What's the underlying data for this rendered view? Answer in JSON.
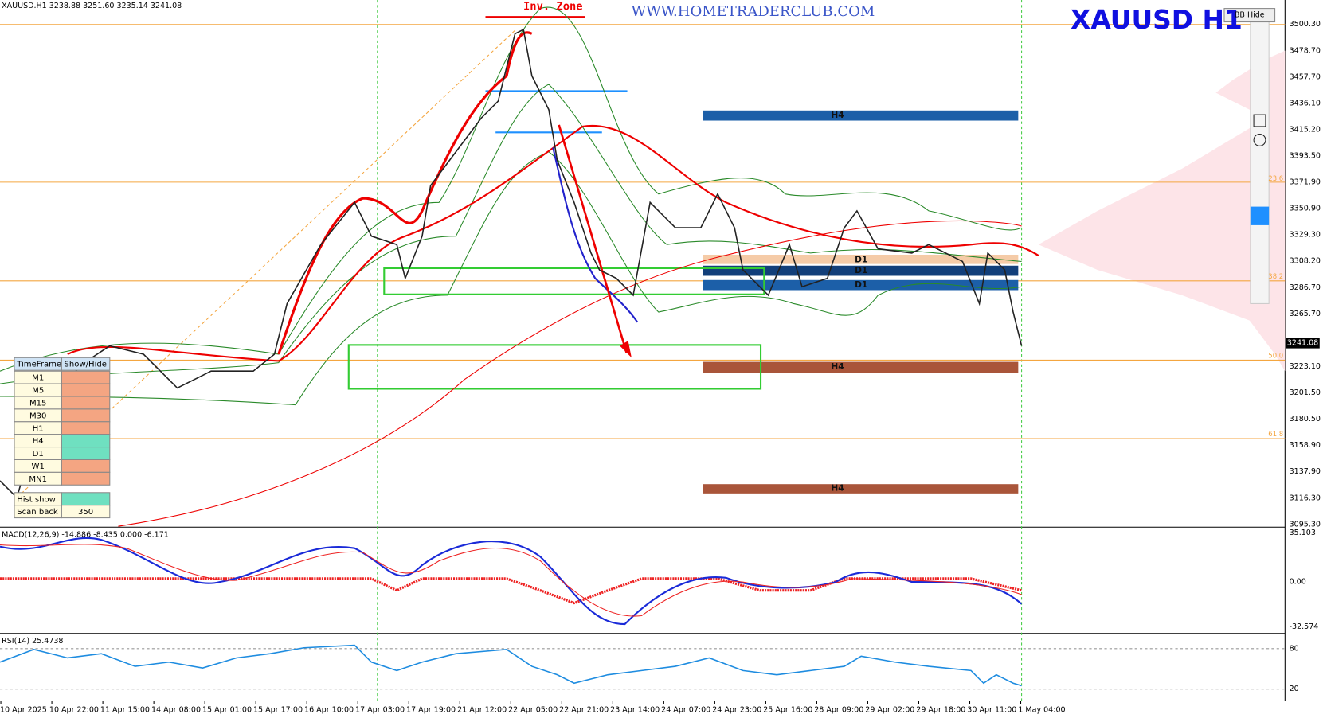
{
  "header": {
    "symbol_info": "XAUUSD.H1  3238.88 3251.60 3235.14 3241.08",
    "watermark": "WWW.HOMETRADERCLUB.COM",
    "big_title": "XAUUSD  H1",
    "bb_hide": "BB Hide",
    "annotation": "Inv. Zone"
  },
  "price_axis": {
    "labels": [
      "3500.30",
      "3478.70",
      "3457.70",
      "3436.10",
      "3415.20",
      "3393.50",
      "3371.90",
      "3350.90",
      "3329.30",
      "3308.20",
      "3286.70",
      "3265.70",
      "3223.10",
      "3201.50",
      "3180.50",
      "3158.90",
      "3137.90",
      "3116.30",
      "3095.30"
    ],
    "current": "3241.08"
  },
  "fib_labels": [
    "23.6",
    "38.2",
    "50.0",
    "61.8"
  ],
  "zones": [
    "H4",
    "D1",
    "D1",
    "D1",
    "H4",
    "H4"
  ],
  "macd": {
    "title": "MACD(12,26,9) -14.886 -8.435 0.000 -6.171",
    "labels": [
      "35.103",
      "0.00",
      "-32.574"
    ]
  },
  "rsi": {
    "title": "RSI(14) 25.4738",
    "labels": [
      "80",
      "20"
    ]
  },
  "time_axis": [
    "10 Apr 2025",
    "10 Apr 22:00",
    "11 Apr 15:00",
    "14 Apr 08:00",
    "15 Apr 01:00",
    "15 Apr 17:00",
    "16 Apr 10:00",
    "17 Apr 03:00",
    "17 Apr 19:00",
    "21 Apr 12:00",
    "22 Apr 05:00",
    "22 Apr 21:00",
    "23 Apr 14:00",
    "24 Apr 07:00",
    "24 Apr 23:00",
    "25 Apr 16:00",
    "28 Apr 09:00",
    "29 Apr 02:00",
    "29 Apr 18:00",
    "30 Apr 11:00",
    "1 May 04:00"
  ],
  "timeframe_panel": {
    "header": [
      "TimeFrame",
      "Show/Hide"
    ],
    "rows": [
      "M1",
      "M5",
      "M15",
      "M30",
      "H1",
      "H4",
      "D1",
      "W1",
      "MN1"
    ],
    "hist_show": "Hist show",
    "scan_back": "Scan back",
    "scan_back_value": "350"
  }
}
